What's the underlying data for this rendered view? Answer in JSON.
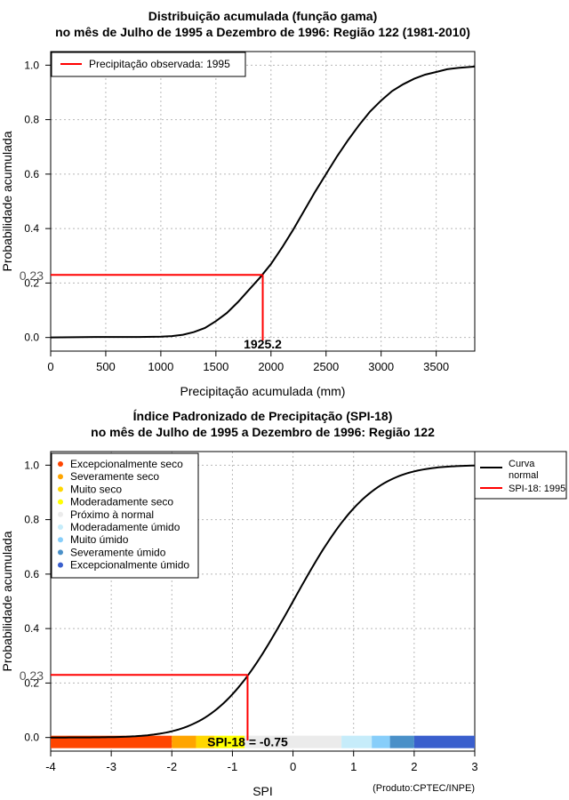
{
  "chart_data": [
    {
      "type": "line",
      "title": "Distribuição acumulada (função gama)",
      "subtitle": "no mês de Julho de 1995 a Dezembro de 1996: Região 122 (1981-2010)",
      "xlabel": "Precipitação acumulada (mm)",
      "ylabel": "Probabilidade acumulada",
      "xlim": [
        0,
        3850
      ],
      "ylim": [
        -0.05,
        1.05
      ],
      "xticks": [
        0,
        500,
        1000,
        1500,
        2000,
        2500,
        3000,
        3500
      ],
      "xtick_labels": [
        "0",
        "500",
        "1000",
        "1500",
        "2000",
        "2500",
        "3000",
        "3500"
      ],
      "yticks": [
        0,
        0.2,
        0.4,
        0.6,
        0.8,
        1.0
      ],
      "ytick_labels": [
        "0.0",
        "0.2",
        "0.4",
        "0.6",
        "0.8",
        "1.0"
      ],
      "grid": true,
      "legend": {
        "position": "top-left",
        "entries": [
          {
            "label": "Precipitação observada: 1995",
            "color": "#ff0000"
          }
        ]
      },
      "series": [
        {
          "name": "Distribuição gama",
          "color": "#000000",
          "x": [
            0,
            200,
            400,
            600,
            800,
            1000,
            1100,
            1200,
            1300,
            1400,
            1500,
            1600,
            1700,
            1800,
            1900,
            2000,
            2100,
            2200,
            2300,
            2400,
            2500,
            2600,
            2700,
            2800,
            2900,
            3000,
            3100,
            3200,
            3300,
            3400,
            3500,
            3600,
            3700,
            3850
          ],
          "y": [
            0,
            0.001,
            0.002,
            0.002,
            0.002,
            0.003,
            0.005,
            0.01,
            0.02,
            0.035,
            0.06,
            0.09,
            0.13,
            0.175,
            0.22,
            0.27,
            0.33,
            0.395,
            0.465,
            0.535,
            0.6,
            0.665,
            0.725,
            0.78,
            0.83,
            0.87,
            0.905,
            0.93,
            0.95,
            0.965,
            0.975,
            0.985,
            0.99,
            0.995
          ]
        }
      ],
      "observed": {
        "x": 1925.2,
        "y": 0.23,
        "x_label": "1925.2",
        "y_label": "0.23",
        "color": "#ff0000"
      }
    },
    {
      "type": "line",
      "title": "Índice Padronizado de Precipitação (SPI-18)",
      "subtitle": "no mês de Julho de 1995 a Dezembro de 1996: Região 122",
      "xlabel": "SPI",
      "ylabel": "Probabilidade acumulada",
      "xlim": [
        -4,
        3
      ],
      "ylim": [
        -0.05,
        1.05
      ],
      "xticks": [
        -4,
        -3,
        -2,
        -1,
        0,
        1,
        2,
        3
      ],
      "xtick_labels": [
        "-4",
        "-3",
        "-2",
        "-1",
        "0",
        "1",
        "2",
        "3"
      ],
      "yticks": [
        0,
        0.2,
        0.4,
        0.6,
        0.8,
        1.0
      ],
      "ytick_labels": [
        "0.0",
        "0.2",
        "0.4",
        "0.6",
        "0.8",
        "1.0"
      ],
      "grid": true,
      "series": [
        {
          "name": "Curva normal",
          "color": "#000000",
          "function": "normal_cdf",
          "x_range": [
            -4,
            3
          ]
        }
      ],
      "observed": {
        "x": -0.75,
        "y": 0.23,
        "y_label": "0.23",
        "spi_label": "SPI-18 = -0.75",
        "color": "#ff0000"
      },
      "category_legend": {
        "position": "top-left",
        "entries": [
          {
            "label": "Excepcionalmente seco",
            "color": "#ff4500"
          },
          {
            "label": "Severamente seco",
            "color": "#ffa500"
          },
          {
            "label": "Muito seco",
            "color": "#ffd700"
          },
          {
            "label": "Moderadamente seco",
            "color": "#ffff00"
          },
          {
            "label": "Próximo à normal",
            "color": "#ebebeb"
          },
          {
            "label": "Moderadamente úmido",
            "color": "#c6ecfa"
          },
          {
            "label": "Muito úmido",
            "color": "#87cefa"
          },
          {
            "label": "Severamente úmido",
            "color": "#4a90c8"
          },
          {
            "label": "Excepcionalmente úmido",
            "color": "#3a5fcd"
          }
        ]
      },
      "series_legend": {
        "position": "outside-top-right",
        "entries": [
          {
            "label_lines": [
              "Curva",
              "normal"
            ],
            "color": "#000000"
          },
          {
            "label_lines": [
              "SPI-18: 1995"
            ],
            "color": "#ff0000"
          }
        ]
      },
      "category_bands": [
        {
          "from": -4,
          "to": -2,
          "color": "#ff4500"
        },
        {
          "from": -2,
          "to": -1.6,
          "color": "#ffa500"
        },
        {
          "from": -1.6,
          "to": -1.3,
          "color": "#ffd700"
        },
        {
          "from": -1.3,
          "to": -0.8,
          "color": "#ffff00"
        },
        {
          "from": -0.8,
          "to": 0.8,
          "color": "#ebebeb"
        },
        {
          "from": 0.8,
          "to": 1.3,
          "color": "#c6ecfa"
        },
        {
          "from": 1.3,
          "to": 1.6,
          "color": "#87cefa"
        },
        {
          "from": 1.6,
          "to": 2,
          "color": "#4a90c8"
        },
        {
          "from": 2,
          "to": 3,
          "color": "#3a5fcd"
        }
      ],
      "credit": "(Produto:CPTEC/INPE)"
    }
  ]
}
